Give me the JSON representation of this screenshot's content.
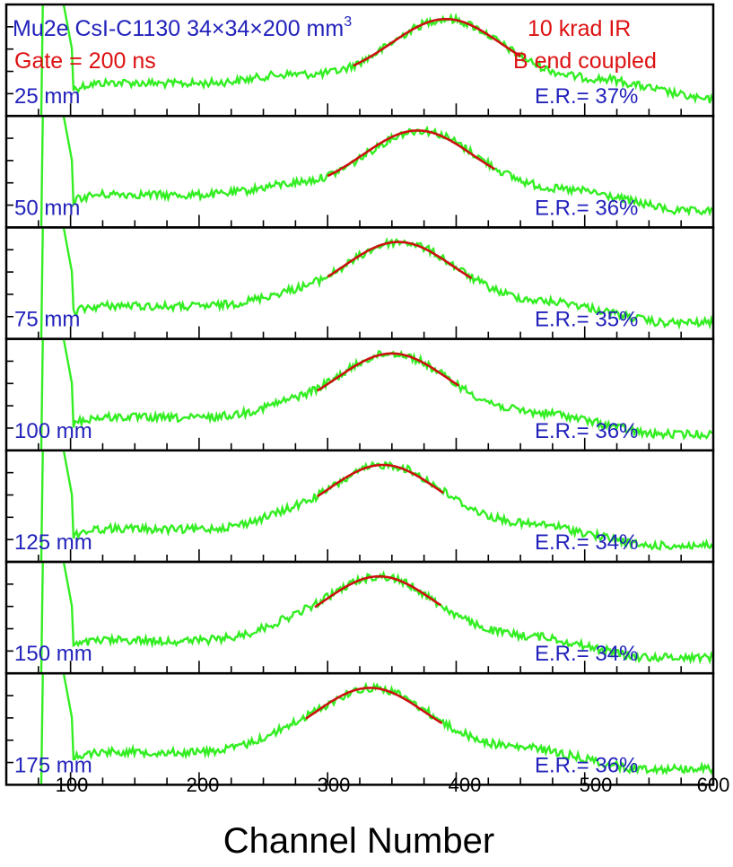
{
  "colors": {
    "spectrum": "#33ee22",
    "fit": "#cc1111",
    "label_blue": "#2222bb",
    "label_red": "#dd1111",
    "frame": "#000000"
  },
  "chart_data": {
    "type": "line",
    "header": {
      "title_prefix": "Mu2e CsI-C1130 34×34×200 mm",
      "title_sup": "3",
      "gate": "Gate = 200 ns",
      "dose": "10 krad IR",
      "coupling": "B end coupled"
    },
    "xlabel": "Channel Number",
    "xlim": [
      50,
      600
    ],
    "xticks": [
      "100",
      "200",
      "300",
      "400",
      "500",
      "600"
    ],
    "grid": false,
    "panels": [
      {
        "position": "25 mm",
        "er": "E.R.= 37%",
        "peak": 392,
        "fit_range": [
          320,
          450
        ],
        "fit_peak": 392
      },
      {
        "position": "50 mm",
        "er": "E.R.= 36%",
        "peak": 372,
        "fit_range": [
          300,
          430
        ],
        "fit_peak": 370
      },
      {
        "position": "75 mm",
        "er": "E.R.= 35%",
        "peak": 356,
        "fit_range": [
          300,
          412
        ],
        "fit_peak": 355
      },
      {
        "position": "100 mm",
        "er": "E.R.= 36%",
        "peak": 350,
        "fit_range": [
          292,
          402
        ],
        "fit_peak": 350
      },
      {
        "position": "125 mm",
        "er": "E.R.= 34%",
        "peak": 345,
        "fit_range": [
          292,
          390
        ],
        "fit_peak": 343
      },
      {
        "position": "150 mm",
        "er": "E.R.= 34%",
        "peak": 340,
        "fit_range": [
          290,
          388
        ],
        "fit_peak": 340
      },
      {
        "position": "175 mm",
        "er": "E.R.= 36%",
        "peak": 335,
        "fit_range": [
          283,
          390
        ],
        "fit_peak": 333
      }
    ]
  }
}
